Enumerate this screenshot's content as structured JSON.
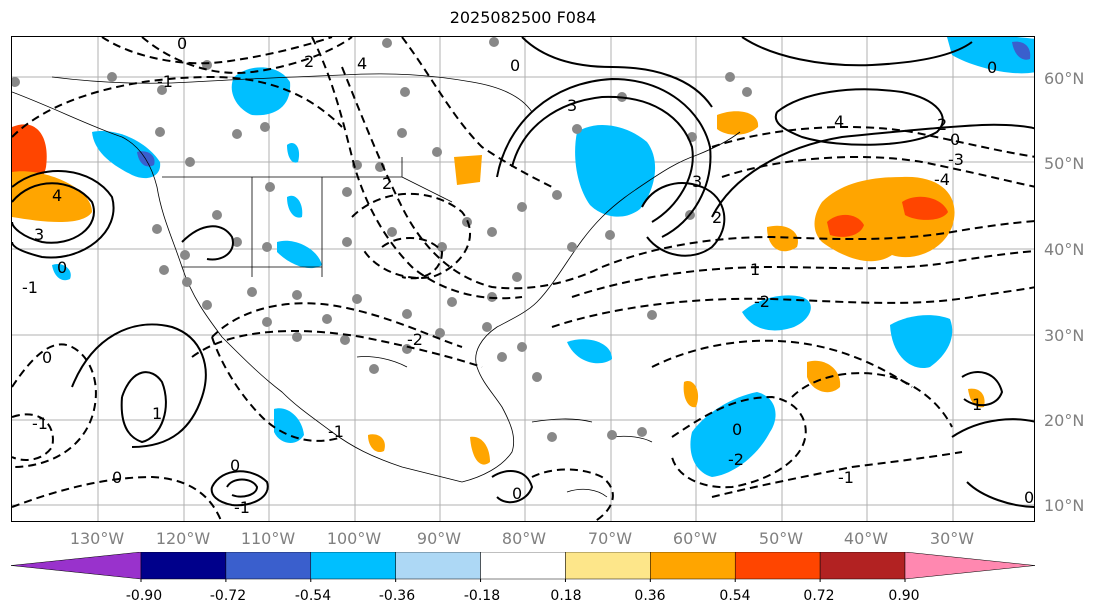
{
  "title": "2025082500 F084",
  "map": {
    "lat_labels": [
      "60°N",
      "50°N",
      "40°N",
      "30°N",
      "20°N",
      "10°N"
    ],
    "lon_labels": [
      "130°W",
      "120°W",
      "110°W",
      "100°W",
      "90°W",
      "80°W",
      "70°W",
      "60°W",
      "50°W",
      "40°W",
      "30°W"
    ],
    "contour_labels": [
      "0",
      "-1",
      "-2",
      "-3",
      "-4",
      "1",
      "2",
      "3",
      "4"
    ],
    "grid": true
  },
  "colorbar": {
    "ticks": [
      "-0.90",
      "-0.72",
      "-0.54",
      "-0.36",
      "-0.18",
      "0.18",
      "0.36",
      "0.54",
      "0.72",
      "0.90"
    ],
    "colors": [
      "#9932cc",
      "#00008b",
      "#3a5fcd",
      "#00bfff",
      "#add8f5",
      "#ffffff",
      "#fde68a",
      "#ffa500",
      "#ff4500",
      "#b22222",
      "#ff88b0"
    ],
    "extend": "both"
  }
}
